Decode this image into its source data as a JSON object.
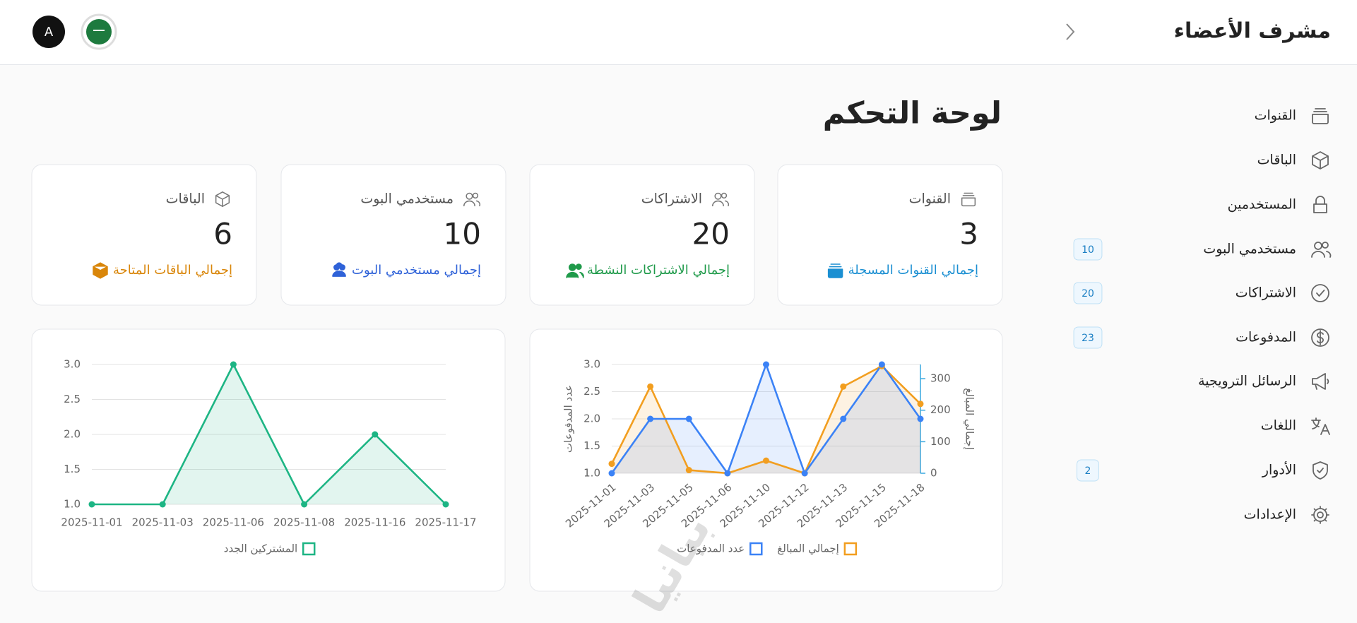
{
  "header": {
    "title": "مشرف الأعضاء",
    "avatar": "A"
  },
  "sidebar": [
    {
      "label": "القنوات"
    },
    {
      "label": "الباقات"
    },
    {
      "label": "المستخدمين"
    },
    {
      "label": "مستخدمي البوت",
      "badge": 10
    },
    {
      "label": "الاشتراكات",
      "badge": 20
    },
    {
      "label": "المدفوعات",
      "badge": 23
    },
    {
      "label": "الرسائل الترويجية"
    },
    {
      "label": "اللغات"
    },
    {
      "label": "الأدوار",
      "badge": 2
    },
    {
      "label": "الإعدادات"
    }
  ],
  "page_title": "لوحة التحكم",
  "cards": [
    {
      "title": "القنوات",
      "value": 3,
      "subtitle": "إجمالي القنوات المسجلة",
      "color": "#1b8fd2"
    },
    {
      "title": "الاشتراكات",
      "value": 20,
      "subtitle": "إجمالي الاشتراكات النشطة",
      "color": "#1f9a4a"
    },
    {
      "title": "مستخدمي البوت",
      "value": 10,
      "subtitle": "إجمالي مستخدمي البوت",
      "color": "#2f62d8"
    },
    {
      "title": "الباقات",
      "value": 6,
      "subtitle": "إجمالي الباقات المتاحة",
      "color": "#d9860a"
    }
  ],
  "watermark": "بيانيا",
  "chart_data": [
    {
      "type": "line",
      "categories": [
        "2025-11-01",
        "2025-11-03",
        "2025-11-05",
        "2025-11-06",
        "2025-11-10",
        "2025-11-12",
        "2025-11-13",
        "2025-11-15",
        "2025-11-18"
      ],
      "series": [
        {
          "name": "إجمالي المبالغ",
          "color": "#f29e1f",
          "axis": "y2",
          "values": [
            30,
            275,
            10,
            0,
            40,
            0,
            275,
            340,
            220
          ]
        },
        {
          "name": "عدد المدفوعات",
          "color": "#3b82f6",
          "values": [
            1,
            2,
            2,
            1,
            3,
            1,
            2,
            3,
            2
          ]
        }
      ],
      "ylabel": "عدد المدفوعات",
      "y2label": "إجمالي المبالغ",
      "ylim": [
        1,
        3
      ],
      "yticks": [
        {
          "value": 1,
          "label": "1.0"
        },
        {
          "value": 1.5,
          "label": "1.5"
        },
        {
          "value": 2,
          "label": "2.0"
        },
        {
          "value": 2.5,
          "label": "2.5"
        },
        {
          "value": 3,
          "label": "3.0"
        }
      ],
      "y2lim": [
        0,
        345
      ],
      "y2ticks": [
        0,
        100,
        200,
        300
      ],
      "grid": true,
      "legend": "bottom",
      "fill": true,
      "rotate_labels": true
    },
    {
      "type": "line",
      "categories": [
        "2025-11-01",
        "2025-11-03",
        "2025-11-06",
        "2025-11-08",
        "2025-11-16",
        "2025-11-17"
      ],
      "series": [
        {
          "name": "المشتركين الجدد",
          "color": "#1db584",
          "values": [
            1,
            1,
            3,
            1,
            2,
            1
          ]
        }
      ],
      "ylim": [
        1,
        3
      ],
      "yticks": [
        {
          "value": 1,
          "label": "1.0"
        },
        {
          "value": 1.5,
          "label": "1.5"
        },
        {
          "value": 2,
          "label": "2.0"
        },
        {
          "value": 2.5,
          "label": "2.5"
        },
        {
          "value": 3,
          "label": "3.0"
        }
      ],
      "grid": true,
      "legend": "bottom",
      "fill": true,
      "rotate_labels": false
    }
  ]
}
